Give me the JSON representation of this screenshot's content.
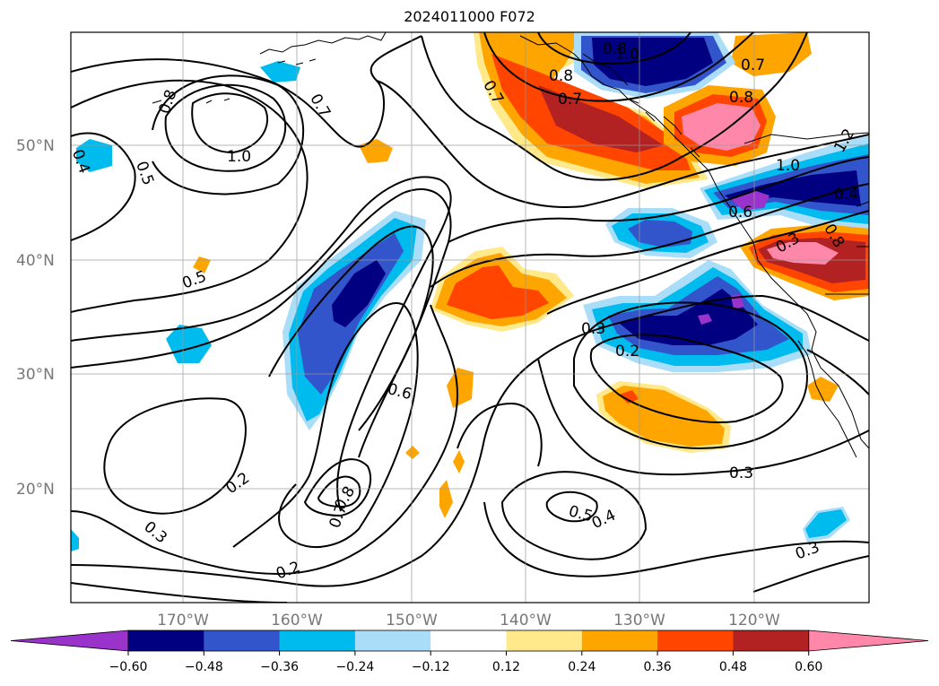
{
  "title": "2024011000 F072",
  "lat_labels": [
    "50°N",
    "40°N",
    "30°N",
    "20°N"
  ],
  "lon_labels": [
    "170°W",
    "160°W",
    "150°W",
    "140°W",
    "130°W",
    "120°W"
  ],
  "colorbar": {
    "colors": [
      "#9933cc",
      "#000080",
      "#3355cc",
      "#00bbee",
      "#aaddf7",
      "#ffffff",
      "#ffe98a",
      "#ffa500",
      "#ff4500",
      "#b22222",
      "#ff88aa"
    ],
    "tick_labels": [
      "−0.60",
      "−0.48",
      "−0.36",
      "−0.24",
      "−0.12",
      "0.12",
      "0.24",
      "0.36",
      "0.48",
      "0.60"
    ]
  },
  "contour_labels": [
    "0.8",
    "0.7",
    "1.0",
    "0.5",
    "0.4",
    "0.5",
    "0.7",
    "0.8",
    "0.7",
    "0.8",
    "1.0",
    "0.7",
    "0.8",
    "1.0",
    "1.2",
    "0.4",
    "0.6",
    "0.3",
    "0.8",
    "0.3",
    "0.2",
    "0.6",
    "0.3",
    "0.5",
    "0.4",
    "0.2",
    "0.8",
    "0.7",
    "0.3",
    "0.3",
    "0.2"
  ]
}
